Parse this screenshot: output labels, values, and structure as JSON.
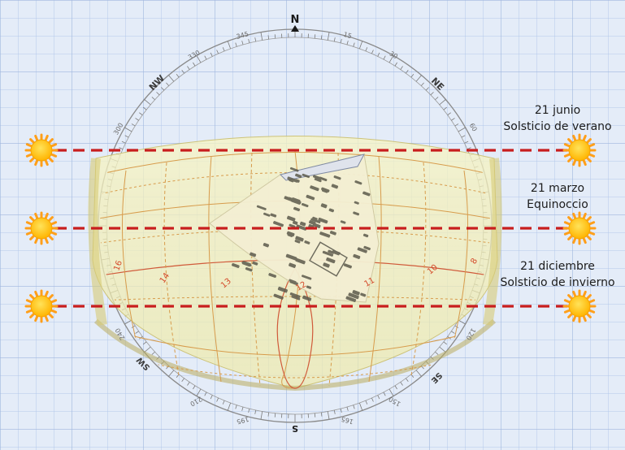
{
  "compass": {
    "north": "N",
    "south": "S",
    "northwest": "NW",
    "northeast": "NE",
    "southwest": "SW",
    "southeast": "SE",
    "degree_marks": [
      "345",
      "15",
      "30",
      "330",
      "300",
      "60",
      "240",
      "120",
      "210",
      "195",
      "165",
      "150"
    ]
  },
  "hour_labels": [
    "16",
    "14",
    "13",
    "12",
    "11",
    "10",
    "8"
  ],
  "annotations": {
    "june": {
      "date": "21 junio",
      "event": "Solsticio de verano"
    },
    "march": {
      "date": "21 marzo",
      "event": "Equinoccio"
    },
    "december": {
      "date": "21 diciembre",
      "event": "Solsticio de invierno"
    }
  },
  "colors": {
    "background": "#dfe9f7",
    "grid": "#a9c0e6",
    "sun_path_band": "#f3f0b9",
    "sun_path_lines": "#d79b4b",
    "dashed_line": "#c81e1e",
    "sun_fill": "#ffc20e",
    "sun_rays": "#ff9f1a",
    "compass_ring": "#8a8a8a"
  },
  "icons": [
    "sun-icon",
    "north-arrow-icon"
  ]
}
